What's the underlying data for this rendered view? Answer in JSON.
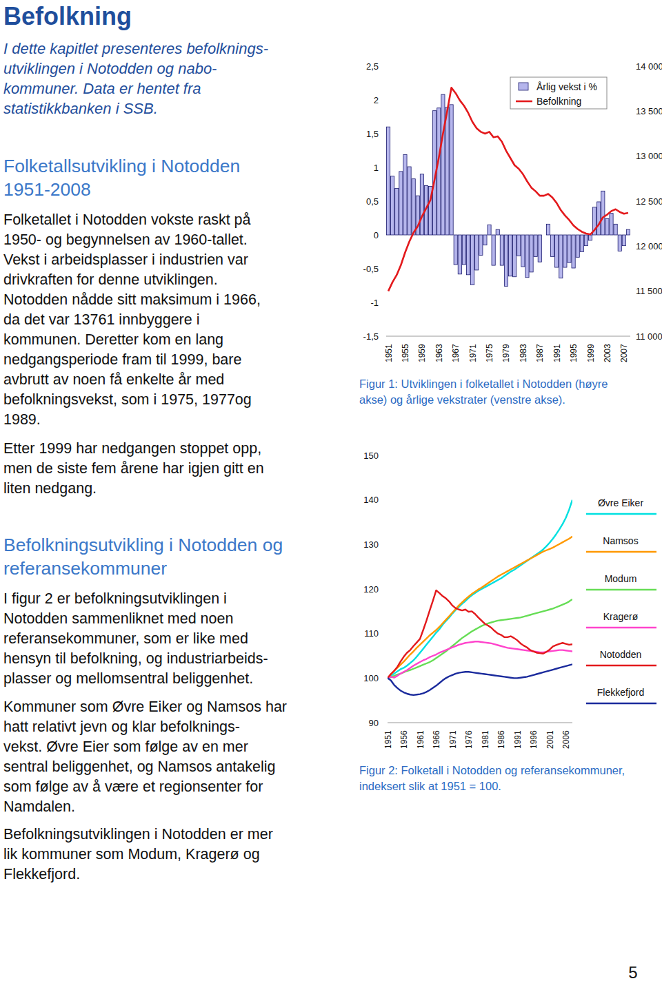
{
  "document": {
    "title": "Befolkning",
    "intro": [
      "I dette kapitlet presenteres befolknings-",
      "utviklingen i Notodden og nabo-",
      "kommuner.  Data er hentet fra",
      "statistikkbanken i SSB."
    ],
    "sections": [
      {
        "heading": [
          "Folketallsutvikling i Notodden",
          "1951-2008"
        ],
        "paragraphs": [
          [
            "Folketallet i Notodden vokste raskt på",
            "1950- og begynnelsen av 1960-tallet.",
            "Vekst i arbeidsplasser i industrien var",
            "drivkraften for denne utviklingen.",
            "Notodden nådde sitt maksimum i 1966,",
            "da det var 13761 innbyggere i",
            "kommunen. Deretter kom en lang",
            "nedgangsperiode fram til 1999, bare",
            "avbrutt av noen få enkelte år med",
            "befolkningsvekst, som i 1975, 1977og",
            "1989."
          ],
          [
            "Etter 1999 har nedgangen stoppet opp,",
            "men de siste fem årene har igjen gitt en",
            "liten nedgang."
          ]
        ]
      },
      {
        "heading": [
          "Befolkningsutvikling i Notodden og",
          "referansekommuner"
        ],
        "paragraphs": [
          [
            "I figur 2 er befolkningsutviklingen i",
            "Notodden sammenliknet med noen",
            "referansekommuner, som er like med",
            "hensyn til befolkning, og industriarbeids-",
            "plasser og mellomsentral beliggenhet."
          ],
          [
            "Kommuner som Øvre Eiker og Namsos har",
            "hatt relativt jevn og klar befolknings-",
            "vekst.  Øvre Eier som følge av en mer",
            "sentral beliggenhet, og Namsos antakelig",
            "som følge av å være et regionsenter for",
            "Namdalen."
          ],
          [
            "Befolkningsutviklingen i Notodden er mer",
            "lik kommuner som Modum, Kragerø og",
            "Flekkefjord."
          ]
        ]
      }
    ],
    "captions": [
      [
        "Figur 1: Utviklingen i folketallet i Notodden (høyre",
        "akse) og årlige vekstrater (venstre akse)."
      ],
      [
        "Figur 2: Folketall i Notodden og referansekommuner,",
        "indeksert slik at 1951 = 100."
      ]
    ],
    "page_number": 5
  },
  "chart_data": [
    {
      "type": "bar",
      "x": [
        1951,
        1952,
        1953,
        1954,
        1955,
        1956,
        1957,
        1958,
        1959,
        1960,
        1961,
        1962,
        1963,
        1964,
        1965,
        1966,
        1967,
        1968,
        1969,
        1970,
        1971,
        1972,
        1973,
        1974,
        1975,
        1976,
        1977,
        1978,
        1979,
        1980,
        1981,
        1982,
        1983,
        1984,
        1985,
        1986,
        1987,
        1988,
        1989,
        1990,
        1991,
        1992,
        1993,
        1994,
        1995,
        1996,
        1997,
        1998,
        1999,
        2000,
        2001,
        2002,
        2003,
        2004,
        2005,
        2006,
        2007,
        2008
      ],
      "xlim": [
        1950.5,
        2008.5
      ],
      "xticks": [
        1951,
        1955,
        1959,
        1963,
        1967,
        1971,
        1975,
        1979,
        1983,
        1987,
        1991,
        1995,
        1999,
        2003,
        2007
      ],
      "ylim": [
        -1.5,
        2.5
      ],
      "yticks": [
        {
          "value": -1.5,
          "label": "-1,5"
        },
        -1,
        {
          "value": -0.5,
          "label": "-0,5"
        },
        0,
        {
          "value": 0.5,
          "label": "0,5"
        },
        1,
        {
          "value": 1.5,
          "label": "1,5"
        },
        2,
        {
          "value": 2.5,
          "label": "2,5"
        }
      ],
      "y2lim": [
        11000,
        14000
      ],
      "y2ticks": [
        {
          "value": 11000,
          "label": "11 000"
        },
        {
          "value": 11500,
          "label": "11 500"
        },
        {
          "value": 12000,
          "label": "12 000"
        },
        {
          "value": 12500,
          "label": "12 500"
        },
        {
          "value": 13000,
          "label": "13 000"
        },
        {
          "value": 13500,
          "label": "13 500"
        },
        {
          "value": 14000,
          "label": "14 000"
        }
      ],
      "legend": "top-right",
      "series": [
        {
          "name": "Årlig vekst i %",
          "type": "bar",
          "color": "#b6b6ec",
          "values": [
            1.6,
            0.87,
            0.69,
            0.94,
            1.19,
            1.01,
            0.83,
            0.58,
            0.9,
            0.73,
            0.72,
            1.84,
            1.88,
            2.08,
            1.89,
            1.93,
            -0.44,
            -0.58,
            -0.44,
            -0.59,
            -0.74,
            -0.52,
            -0.3,
            -0.15,
            0.15,
            -0.45,
            0.08,
            -0.45,
            -0.76,
            -0.61,
            -0.62,
            -0.31,
            -0.47,
            -0.63,
            -0.55,
            -0.32,
            -0.4,
            0,
            0.16,
            -0.32,
            -0.48,
            -0.64,
            -0.48,
            -0.41,
            -0.49,
            -0.33,
            -0.25,
            -0.16,
            -0.08,
            0.41,
            0.49,
            0.65,
            0.24,
            0.32,
            0.16,
            -0.24,
            -0.16,
            0.08
          ]
        },
        {
          "name": "Befolkning",
          "type": "line",
          "color": "#e3191c",
          "axis": "y2",
          "values": [
            11500,
            11600,
            11680,
            11790,
            11930,
            12050,
            12150,
            12220,
            12330,
            12420,
            12510,
            12740,
            12980,
            13250,
            13500,
            13761,
            13700,
            13620,
            13560,
            13480,
            13380,
            13310,
            13270,
            13250,
            13270,
            13210,
            13220,
            13160,
            13060,
            12980,
            12900,
            12860,
            12800,
            12720,
            12650,
            12610,
            12560,
            12560,
            12580,
            12540,
            12480,
            12400,
            12340,
            12290,
            12230,
            12190,
            12160,
            12140,
            12130,
            12180,
            12240,
            12320,
            12350,
            12390,
            12410,
            12380,
            12360,
            12370
          ]
        }
      ]
    },
    {
      "type": "line",
      "x": [
        1951,
        1952,
        1953,
        1954,
        1955,
        1956,
        1957,
        1958,
        1959,
        1960,
        1961,
        1962,
        1963,
        1964,
        1965,
        1966,
        1967,
        1968,
        1969,
        1970,
        1971,
        1972,
        1973,
        1974,
        1975,
        1976,
        1977,
        1978,
        1979,
        1980,
        1981,
        1982,
        1983,
        1984,
        1985,
        1986,
        1987,
        1988,
        1989,
        1990,
        1991,
        1992,
        1993,
        1994,
        1995,
        1996,
        1997,
        1998,
        1999,
        2000,
        2001,
        2002,
        2003,
        2004,
        2005,
        2006,
        2007,
        2008
      ],
      "xlim": [
        1951,
        2008
      ],
      "xticks": [
        1951,
        1956,
        1961,
        1966,
        1971,
        1976,
        1981,
        1986,
        1991,
        1996,
        2001,
        2006
      ],
      "ylim": [
        90,
        150
      ],
      "yticks": [
        90,
        100,
        110,
        120,
        130,
        140,
        150
      ],
      "legend": "right",
      "series": [
        {
          "name": "Øvre Eiker",
          "color": "#00e0e0",
          "values": [
            100,
            100.5,
            101,
            101.5,
            102,
            102.3,
            102.8,
            103.4,
            104,
            104.8,
            105.7,
            106.6,
            107.5,
            108.4,
            109.3,
            110.2,
            111,
            112,
            112.8,
            113.6,
            114.5,
            115.3,
            116,
            116.7,
            117.3,
            118,
            118.6,
            119.1,
            119.6,
            120,
            120.4,
            120.8,
            121.2,
            121.6,
            122,
            122.4,
            122.9,
            123.4,
            123.9,
            124.3,
            124.8,
            125.3,
            125.8,
            126.3,
            126.8,
            127.3,
            127.8,
            128.3,
            128.9,
            129.6,
            130.4,
            131.3,
            132.3,
            133.4,
            134.6,
            136,
            137.8,
            140
          ]
        },
        {
          "name": "Namsos",
          "color": "#ff9900",
          "values": [
            100,
            100.8,
            101.6,
            102.3,
            103,
            103.7,
            104.5,
            105.3,
            106,
            106.8,
            107.5,
            108.2,
            108.9,
            109.6,
            110.2,
            110.8,
            111.5,
            112.3,
            113.1,
            113.9,
            114.7,
            115.5,
            116.3,
            117,
            117.7,
            118.3,
            118.9,
            119.4,
            119.9,
            120.3,
            120.8,
            121.3,
            121.8,
            122.3,
            122.8,
            123.2,
            123.6,
            124,
            124.4,
            124.8,
            125.2,
            125.6,
            126,
            126.4,
            126.8,
            127.2,
            127.6,
            128,
            128.4,
            128.7,
            129,
            129.3,
            129.7,
            130.1,
            130.5,
            130.9,
            131.3,
            131.8
          ]
        },
        {
          "name": "Modum",
          "color": "#66dd55",
          "values": [
            100,
            100.2,
            100.5,
            100.8,
            101,
            101.3,
            101.6,
            101.8,
            102.1,
            102.4,
            102.7,
            103,
            103.3,
            103.6,
            104,
            104.5,
            105,
            105.5,
            106,
            106.6,
            107.2,
            107.8,
            108.4,
            109,
            109.5,
            110,
            110.5,
            110.9,
            111.3,
            111.7,
            112,
            112.3,
            112.5,
            112.7,
            112.9,
            113,
            113.1,
            113.2,
            113.3,
            113.4,
            113.5,
            113.6,
            113.8,
            114,
            114.2,
            114.4,
            114.6,
            114.8,
            115,
            115.2,
            115.4,
            115.6,
            115.9,
            116.2,
            116.5,
            116.8,
            117.2,
            117.7
          ]
        },
        {
          "name": "Kragerø",
          "color": "#ff44cc",
          "values": [
            100,
            100.3,
            100.1,
            100.5,
            101,
            101.4,
            101.8,
            102.3,
            102.8,
            103.2,
            103.6,
            104,
            104.3,
            104.7,
            105,
            105.3,
            105.7,
            106,
            106.3,
            106.6,
            106.9,
            107.2,
            107.5,
            107.7,
            107.9,
            108,
            108.1,
            108.2,
            108.2,
            108.1,
            108,
            107.9,
            107.8,
            107.6,
            107.4,
            107.2,
            107,
            106.8,
            106.7,
            106.6,
            106.5,
            106.4,
            106.3,
            106.2,
            106.1,
            106,
            105.9,
            105.8,
            105.8,
            105.9,
            106,
            106.1,
            106.2,
            106.3,
            106.3,
            106.2,
            106.1,
            106
          ]
        },
        {
          "name": "Notodden",
          "color": "#e3191c",
          "values": [
            100,
            100.9,
            101.6,
            102.5,
            103.7,
            104.8,
            105.7,
            106.3,
            107.2,
            108,
            108.8,
            110.8,
            112.9,
            115.2,
            117.4,
            119.7,
            119.1,
            118.4,
            117.9,
            117.2,
            116.3,
            115.7,
            115.4,
            115.2,
            115.4,
            114.9,
            115,
            114.4,
            113.6,
            112.9,
            112.2,
            111.8,
            111.3,
            110.6,
            110,
            109.7,
            109.2,
            109.2,
            109.4,
            109,
            108.5,
            107.8,
            107.3,
            106.9,
            106.3,
            106,
            105.7,
            105.6,
            105.5,
            105.9,
            106.4,
            107.1,
            107.4,
            107.7,
            107.9,
            107.7,
            107.5,
            107.6
          ]
        },
        {
          "name": "Flekkefjord",
          "color": "#1a2a9c",
          "values": [
            100,
            99.5,
            98.5,
            97.8,
            97.2,
            96.8,
            96.5,
            96.3,
            96.2,
            96.3,
            96.4,
            96.6,
            96.9,
            97.3,
            97.8,
            98.3,
            98.9,
            99.5,
            100,
            100.4,
            100.7,
            101,
            101.2,
            101.3,
            101.4,
            101.4,
            101.3,
            101.2,
            101.1,
            101,
            100.9,
            100.8,
            100.7,
            100.6,
            100.5,
            100.4,
            100.3,
            100.2,
            100.1,
            100,
            100,
            100.1,
            100.2,
            100.3,
            100.5,
            100.7,
            100.9,
            101.1,
            101.3,
            101.5,
            101.7,
            101.9,
            102.1,
            102.3,
            102.5,
            102.7,
            102.9,
            103.1
          ]
        }
      ]
    }
  ]
}
